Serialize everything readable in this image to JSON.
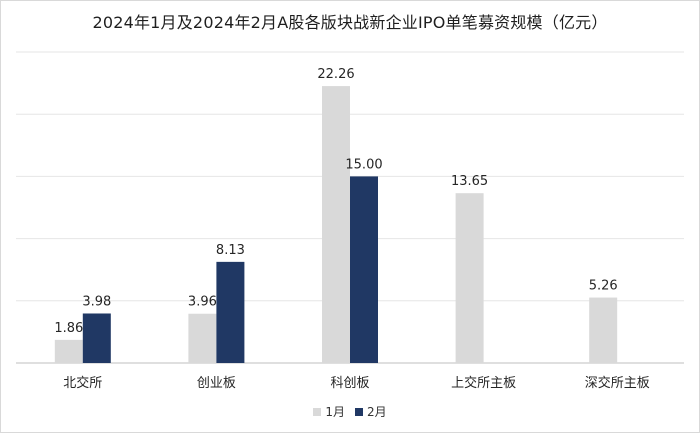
{
  "chart_data": {
    "type": "bar",
    "title": "2024年1月及2024年2月A股各版块战新企业IPO单笔募资规模（亿元）",
    "categories": [
      "北交所",
      "创业板",
      "科创板",
      "上交所主板",
      "深交所主板"
    ],
    "series": [
      {
        "name": "1月",
        "color": "#d9d9d9",
        "values": [
          1.86,
          3.96,
          22.26,
          13.65,
          5.26
        ]
      },
      {
        "name": "2月",
        "color": "#203864",
        "values": [
          3.98,
          8.13,
          15.0,
          null,
          null
        ]
      }
    ],
    "ylim": [
      0,
      25
    ],
    "y_gridlines": [
      0,
      5,
      10,
      15,
      20,
      25
    ],
    "grid": true,
    "legend_position": "bottom-center",
    "show_data_labels": true
  }
}
